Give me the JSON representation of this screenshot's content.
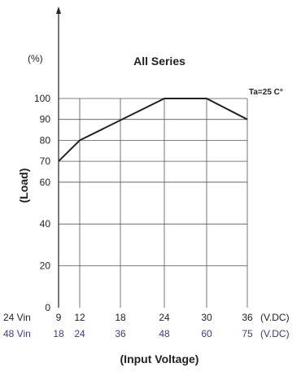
{
  "chart_data": {
    "type": "line",
    "title": "All Series",
    "annotation": "Ta=25 C°",
    "ylabel": "(Load)",
    "yunit": "(%)",
    "xlabel": "(Input Voltage)",
    "ylim": [
      0,
      100
    ],
    "yticks": [
      0,
      20,
      40,
      60,
      70,
      80,
      90,
      100
    ],
    "x_primary": {
      "label": "24 Vin",
      "unit": "(V.DC)",
      "ticks": [
        9,
        12,
        18,
        24,
        30,
        36
      ]
    },
    "x_secondary": {
      "label": "48 Vin",
      "unit": "(V.DC)",
      "ticks": [
        18,
        24,
        36,
        48,
        60,
        75
      ]
    },
    "grid": true,
    "series": [
      {
        "x": [
          9,
          12,
          24,
          30,
          36
        ],
        "values": [
          70,
          80,
          100,
          100,
          90
        ]
      }
    ],
    "colors": {
      "line": "#222222",
      "grid": "#555555",
      "secondary_axis": "#3b3b8c"
    }
  }
}
